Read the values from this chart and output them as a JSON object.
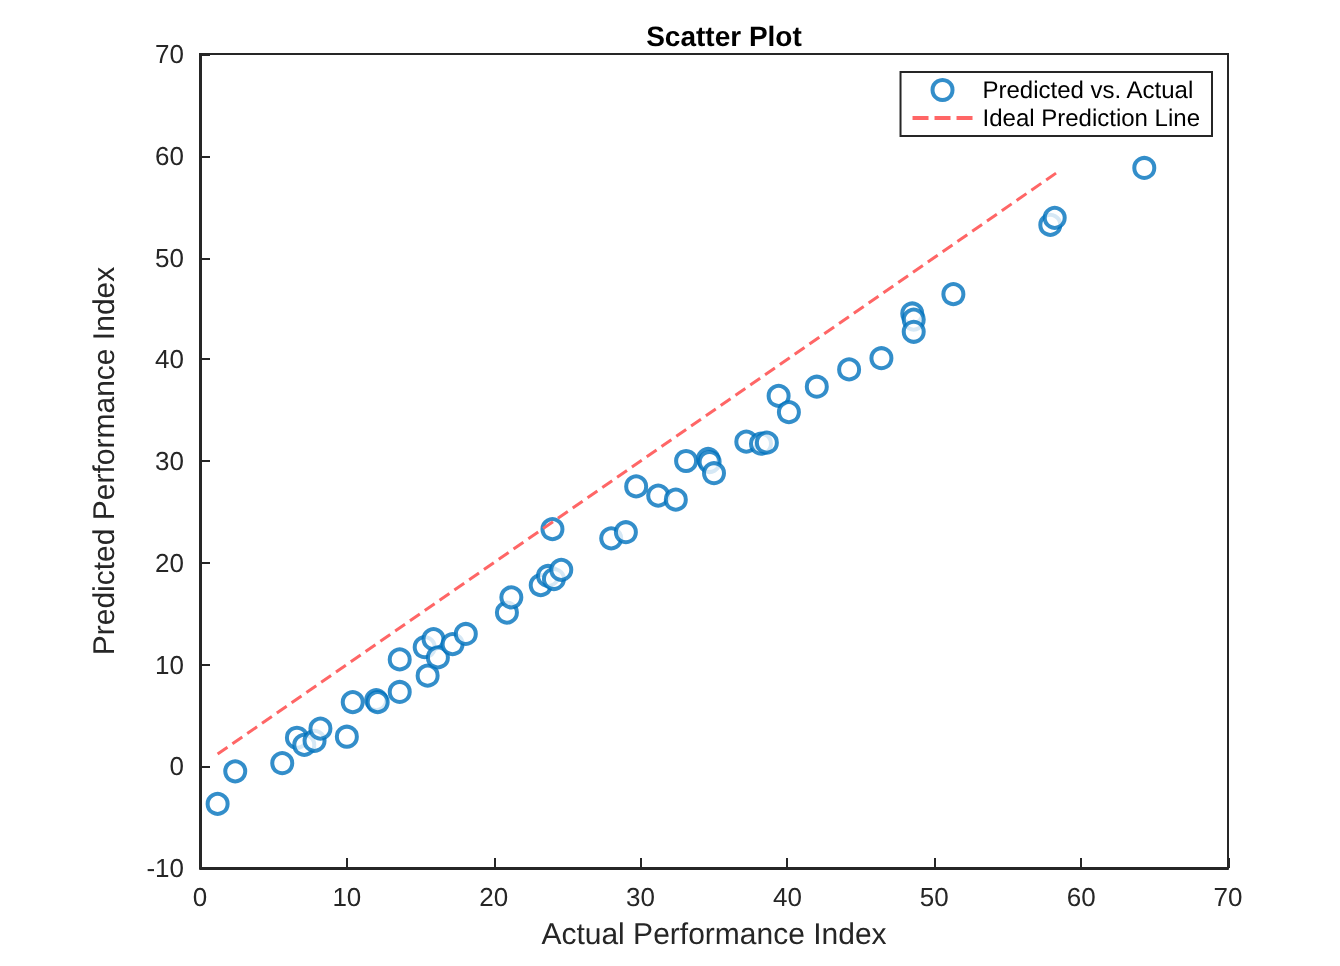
{
  "chart_data": {
    "type": "scatter",
    "title": "Scatter Plot",
    "xlabel": "Actual Performance Index",
    "ylabel": "Predicted Performance Index",
    "xlim": [
      0,
      70
    ],
    "xticks": [
      0,
      10,
      20,
      30,
      40,
      50,
      60,
      70
    ],
    "ylim": [
      -10,
      70
    ],
    "yticks": [
      -10,
      0,
      10,
      20,
      30,
      40,
      50,
      60,
      70
    ],
    "grid": false,
    "legend": "top right",
    "marker": "circle",
    "series": [
      {
        "name": "Predicted vs. Actual",
        "color": "#0072bd",
        "x": [
          1.2,
          2.4,
          5.6,
          6.6,
          7.1,
          7.8,
          8.2,
          10,
          10.4,
          12,
          12.1,
          13.6,
          13.6,
          15.3,
          15.5,
          15.9,
          16.2,
          17.2,
          18.1,
          20.9,
          21.2,
          23.2,
          23.7,
          24,
          24.1,
          24.6,
          28,
          29,
          29.7,
          31.2,
          32.4,
          33.1,
          34.6,
          34.7,
          35,
          37.2,
          38.2,
          38.6,
          39.4,
          40.1,
          42,
          44.2,
          46.4,
          48.5,
          48.6,
          48.6,
          51.3,
          57.9,
          58.2,
          64.3
        ],
        "values": [
          -3.7,
          -0.5,
          0.3,
          2.8,
          2.1,
          2.5,
          3.7,
          2.9,
          6.3,
          6.5,
          6.3,
          10.5,
          7.3,
          11.7,
          8.9,
          12.5,
          10.7,
          12,
          13,
          15.1,
          16.6,
          17.8,
          18.7,
          23.3,
          18.4,
          19.3,
          22.4,
          23,
          27.5,
          26.6,
          26.2,
          30,
          30.2,
          29.9,
          28.8,
          31.9,
          31.7,
          31.8,
          36.4,
          34.8,
          37.3,
          39,
          40.1,
          44.5,
          43.9,
          42.7,
          46.4,
          53.2,
          53.9,
          58.8
        ]
      },
      {
        "name": "Ideal Prediction Line",
        "type": "line",
        "color": "#ff6666",
        "line_style": "dashed",
        "marker": "none",
        "x": [
          1.2,
          58.5
        ],
        "values": [
          1.2,
          58.5
        ]
      }
    ]
  }
}
